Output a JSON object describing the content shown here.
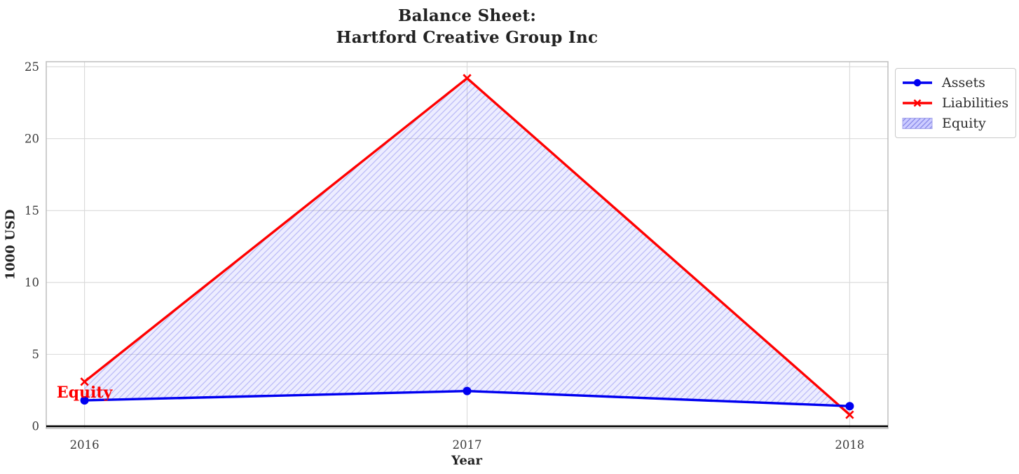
{
  "title": {
    "line1": "Balance Sheet:",
    "line2": "Hartford Creative Group Inc"
  },
  "chart_data": {
    "type": "line",
    "title": "Balance Sheet:\nHartford Creative Group Inc",
    "xlabel": "Year",
    "ylabel": "1000 USD",
    "x": [
      2016,
      2017,
      2018
    ],
    "series": [
      {
        "name": "Assets",
        "values": [
          1.8,
          2.45,
          1.4
        ],
        "color": "#0000f0",
        "marker": "circle",
        "line_width": 3.4
      },
      {
        "name": "Liabilities",
        "values": [
          3.1,
          24.2,
          0.8
        ],
        "color": "#ff0000",
        "marker": "x",
        "line_width": 3.4
      }
    ],
    "fill_between": {
      "name": "Equity",
      "between": [
        "Assets",
        "Liabilities"
      ],
      "fill_color": "rgba(80,80,255,0.10)",
      "hatch_color": "rgba(70,70,230,0.30)",
      "hatch": "//",
      "swatch_fill": "#ccccff",
      "swatch_hatch": "rgba(90,90,220,0.65)",
      "swatch_edge": "#a3a3ea"
    },
    "annotation": {
      "text": "Equity",
      "color": "#ff0000",
      "x": 2016,
      "y": 2.35
    },
    "xlim": [
      2015.9,
      2018.1
    ],
    "ylim": [
      -0.15,
      25.35
    ],
    "xticks": [
      2016,
      2017,
      2018
    ],
    "yticks": [
      0,
      5,
      10,
      15,
      20,
      25
    ],
    "grid": true,
    "zero_line": {
      "y": 0,
      "color": "#000000",
      "width": 2.6
    },
    "legend": {
      "position": "outside-upper-right",
      "entries": [
        "Assets",
        "Liabilities",
        "Equity"
      ]
    }
  },
  "colors": {
    "grid": "#d9d9d9",
    "spine": "#bdbdbd",
    "tick_text": "#3a3a3a",
    "text": "#222222"
  }
}
